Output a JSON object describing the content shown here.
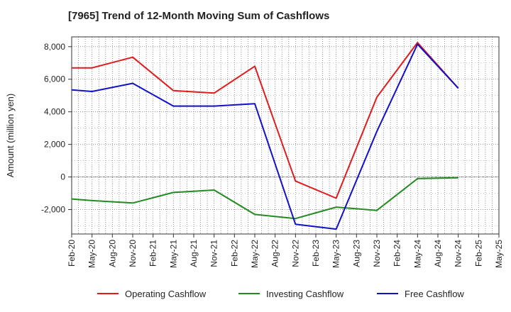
{
  "chart_data": {
    "type": "line",
    "title": "[7965]  Trend of 12-Month Moving Sum of Cashflows",
    "ylabel": "Amount (million yen)",
    "xlabel": "",
    "ylim": [
      -3500,
      8600
    ],
    "yticks": [
      -2000,
      0,
      2000,
      4000,
      6000,
      8000
    ],
    "ytick_labels": [
      "-2,000",
      "0",
      "2,000",
      "4,000",
      "6,000",
      "8,000"
    ],
    "categories": [
      "Feb-20",
      "May-20",
      "Aug-20",
      "Nov-20",
      "Feb-21",
      "May-21",
      "Aug-21",
      "Nov-21",
      "Feb-22",
      "May-22",
      "Aug-22",
      "Nov-22",
      "Feb-23",
      "May-23",
      "Aug-23",
      "Nov-23",
      "Feb-24",
      "May-24",
      "Aug-24",
      "Nov-24",
      "Feb-25",
      "May-25"
    ],
    "grid": true,
    "legend_position": "bottom",
    "series": [
      {
        "name": "Operating Cashflow",
        "color": "#e31a1c",
        "values": [
          6700,
          6700,
          null,
          7350,
          null,
          5300,
          null,
          5150,
          null,
          6800,
          null,
          -250,
          null,
          -1300,
          null,
          4900,
          null,
          8250,
          null,
          5450,
          null,
          null
        ]
      },
      {
        "name": "Investing Cashflow",
        "color": "#228b22",
        "values": [
          -1350,
          -1450,
          null,
          -1600,
          null,
          -950,
          null,
          -800,
          null,
          -2300,
          null,
          -2550,
          null,
          -1850,
          null,
          -2050,
          null,
          -100,
          null,
          -50,
          null,
          null
        ]
      },
      {
        "name": "Free Cashflow",
        "color": "#1111cc",
        "values": [
          5350,
          5250,
          null,
          5750,
          null,
          4350,
          null,
          4350,
          null,
          4500,
          null,
          -2900,
          null,
          -3200,
          null,
          2800,
          null,
          8150,
          null,
          5450,
          null,
          null
        ]
      }
    ]
  }
}
